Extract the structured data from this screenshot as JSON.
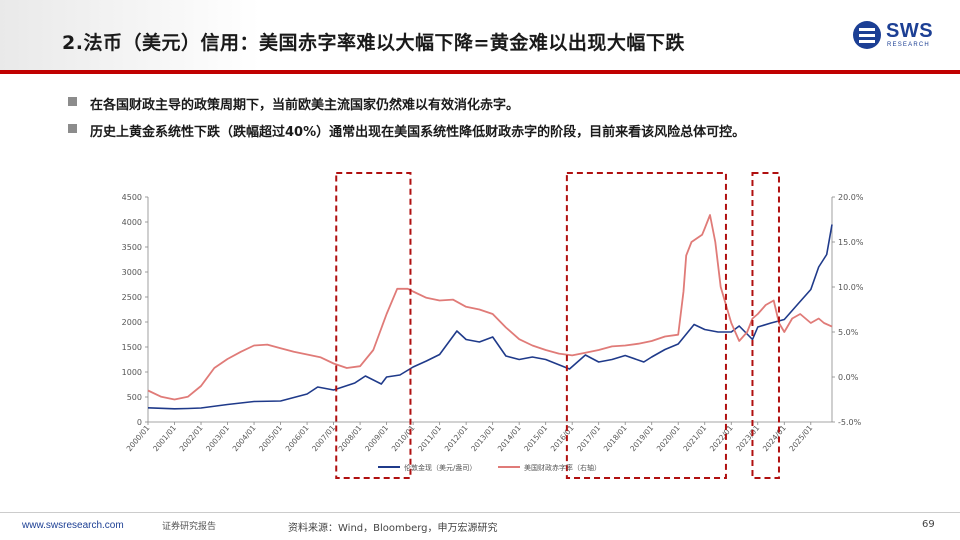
{
  "header": {
    "title": "2.法币（美元）信用：美国赤字率难以大幅下降=黄金难以出现大幅下跌",
    "logo_text": "SWS",
    "logo_sub": "RESEARCH"
  },
  "bullets": [
    "在各国财政主导的政策周期下，当前欧美主流国家仍然难以有效消化赤字。",
    "历史上黄金系统性下跌（跌幅超过40%）通常出现在美国系统性降低财政赤字的阶段，目前来看该风险总体可控。"
  ],
  "chart_data": {
    "type": "line",
    "x_tick_labels": [
      "2000/01",
      "2001/01",
      "2002/01",
      "2003/01",
      "2004/01",
      "2005/01",
      "2006/01",
      "2007/01",
      "2008/01",
      "2009/01",
      "2010/01",
      "2011/01",
      "2012/01",
      "2013/01",
      "2014/01",
      "2015/01",
      "2016/01",
      "2017/01",
      "2018/01",
      "2019/01",
      "2020/01",
      "2021/01",
      "2022/01",
      "2023/01",
      "2024/01",
      "2025/01"
    ],
    "y_left_ticks": [
      "0",
      "500",
      "1000",
      "1500",
      "2000",
      "2500",
      "3000",
      "3500",
      "4000",
      "4500"
    ],
    "y_right_ticks": [
      "-5.0%",
      "0.0%",
      "5.0%",
      "10.0%",
      "15.0%",
      "20.0%"
    ],
    "ylim_left": [
      0,
      4500
    ],
    "ylim_right": [
      -5,
      20
    ],
    "xlim": [
      2000.0,
      2025.8
    ],
    "series": [
      {
        "name": "伦敦金现（美元/盎司）",
        "axis": "left",
        "color": "#1f3a8a",
        "x": [
          2000.0,
          2001.0,
          2001.5,
          2002.0,
          2003.0,
          2004.0,
          2005.0,
          2006.0,
          2006.4,
          2007.0,
          2007.8,
          2008.2,
          2008.8,
          2009.0,
          2009.5,
          2010.0,
          2010.5,
          2011.0,
          2011.65,
          2012.0,
          2012.5,
          2013.0,
          2013.5,
          2014.0,
          2014.5,
          2015.0,
          2015.9,
          2016.5,
          2017.0,
          2017.5,
          2018.0,
          2018.7,
          2019.0,
          2019.5,
          2020.0,
          2020.6,
          2021.0,
          2021.5,
          2022.0,
          2022.3,
          2022.8,
          2023.0,
          2023.5,
          2024.0,
          2024.5,
          2025.0,
          2025.3,
          2025.6,
          2025.8
        ],
        "y": [
          285,
          265,
          270,
          280,
          350,
          410,
          420,
          560,
          700,
          640,
          780,
          920,
          760,
          900,
          940,
          1100,
          1220,
          1350,
          1820,
          1650,
          1600,
          1700,
          1320,
          1250,
          1300,
          1250,
          1060,
          1340,
          1200,
          1250,
          1330,
          1200,
          1300,
          1450,
          1560,
          1950,
          1850,
          1800,
          1800,
          1920,
          1650,
          1900,
          1980,
          2050,
          2350,
          2650,
          3100,
          3350,
          3950
        ]
      },
      {
        "name": "美国财政赤字率（右轴）",
        "axis": "right",
        "color": "#e07b78",
        "x": [
          2000.0,
          2000.5,
          2001.0,
          2001.5,
          2002.0,
          2002.5,
          2003.0,
          2003.5,
          2004.0,
          2004.5,
          2005.0,
          2005.5,
          2006.0,
          2006.5,
          2007.0,
          2007.5,
          2008.0,
          2008.5,
          2009.0,
          2009.4,
          2009.8,
          2010.0,
          2010.5,
          2011.0,
          2011.5,
          2012.0,
          2012.5,
          2013.0,
          2013.5,
          2014.0,
          2014.5,
          2015.0,
          2015.5,
          2016.0,
          2016.5,
          2017.0,
          2017.5,
          2018.0,
          2018.5,
          2019.0,
          2019.5,
          2020.0,
          2020.2,
          2020.3,
          2020.5,
          2020.9,
          2021.0,
          2021.2,
          2021.4,
          2021.6,
          2021.8,
          2022.0,
          2022.3,
          2022.6,
          2022.8,
          2023.0,
          2023.3,
          2023.6,
          2023.8,
          2024.0,
          2024.3,
          2024.6,
          2024.8,
          2025.0,
          2025.3,
          2025.5,
          2025.8
        ],
        "y": [
          -1.5,
          -2.2,
          -2.5,
          -2.2,
          -1.0,
          1.0,
          2.0,
          2.8,
          3.5,
          3.6,
          3.2,
          2.8,
          2.5,
          2.2,
          1.5,
          1.0,
          1.2,
          3.0,
          7.0,
          9.8,
          9.8,
          9.5,
          8.8,
          8.5,
          8.6,
          7.8,
          7.5,
          7.0,
          5.5,
          4.2,
          3.5,
          3.0,
          2.6,
          2.4,
          2.7,
          3.0,
          3.4,
          3.5,
          3.7,
          4.0,
          4.5,
          4.7,
          9.5,
          13.5,
          15.0,
          15.8,
          16.5,
          18.0,
          15.0,
          10.0,
          8.0,
          6.0,
          4.0,
          5.0,
          6.5,
          7.0,
          8.0,
          8.5,
          6.0,
          5.0,
          6.5,
          7.0,
          6.5,
          6.0,
          6.5,
          6.0,
          5.6
        ]
      }
    ],
    "highlight_ranges": [
      [
        2007.1,
        2009.9
      ],
      [
        2015.8,
        2021.8
      ],
      [
        2022.8,
        2023.8
      ]
    ]
  },
  "footer": {
    "website": "www.swsresearch.com",
    "report_type": "证券研究报告",
    "source": "资料来源：Wind，Bloomberg，申万宏源研究",
    "page": "69"
  }
}
